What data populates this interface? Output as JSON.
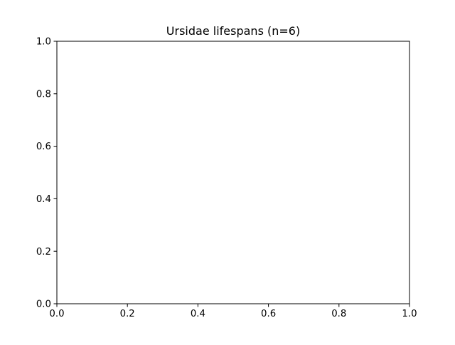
{
  "chart_data": {
    "type": "scatter",
    "title": "Ursidae lifespans (n=6)",
    "xlabel": "",
    "ylabel": "",
    "xlim": [
      0.0,
      1.0
    ],
    "ylim": [
      0.0,
      1.0
    ],
    "x_ticks": [
      "0.0",
      "0.2",
      "0.4",
      "0.6",
      "0.8",
      "1.0"
    ],
    "y_ticks": [
      "0.0",
      "0.2",
      "0.4",
      "0.6",
      "0.8",
      "1.0"
    ],
    "series": [],
    "grid": false
  },
  "colors": {
    "axes_edge": "#000000",
    "background": "#ffffff"
  }
}
